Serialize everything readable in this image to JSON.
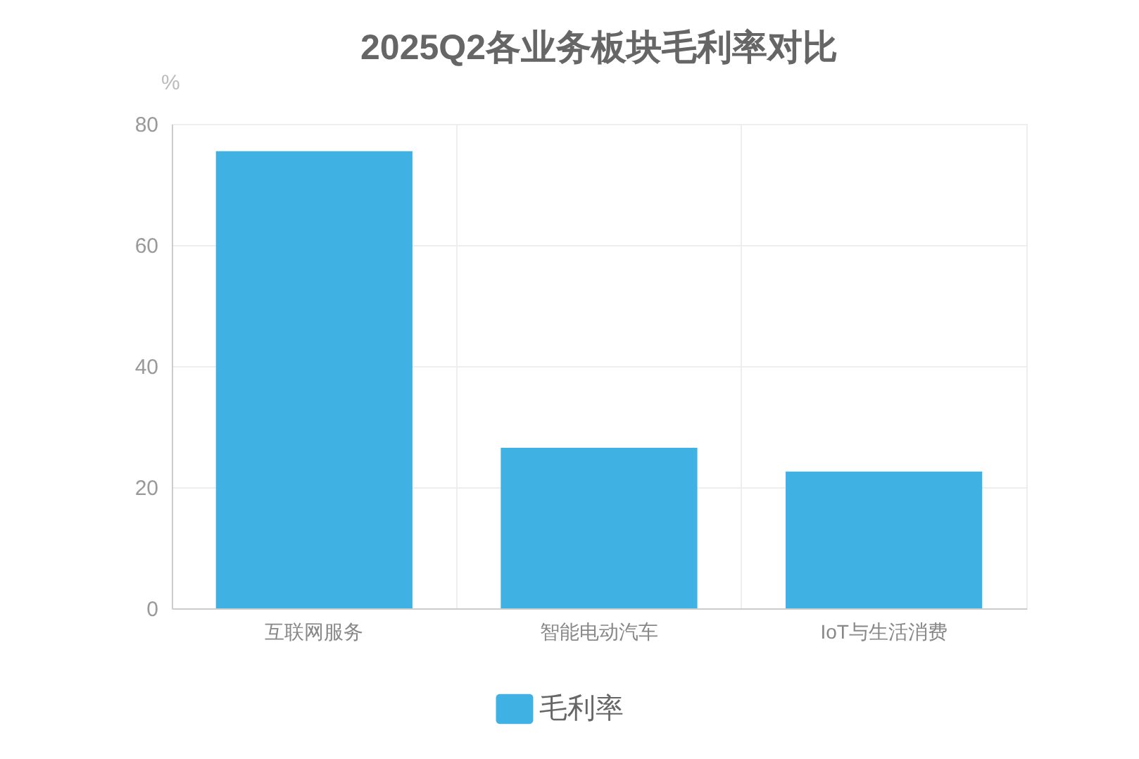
{
  "chart_data": {
    "type": "bar",
    "title": "2025Q2各业务板块毛利率对比",
    "ylabel": "%",
    "categories": [
      "互联网服务",
      "智能电动汽车",
      "IoT与生活消费"
    ],
    "series": [
      {
        "name": "毛利率",
        "color": "#3fb1e3",
        "values": [
          75.5,
          26.5,
          22.6
        ]
      }
    ],
    "ylim": [
      0,
      80
    ],
    "yticks": [
      0,
      20,
      40,
      60,
      80
    ],
    "grid": true,
    "legend": "bottom"
  }
}
